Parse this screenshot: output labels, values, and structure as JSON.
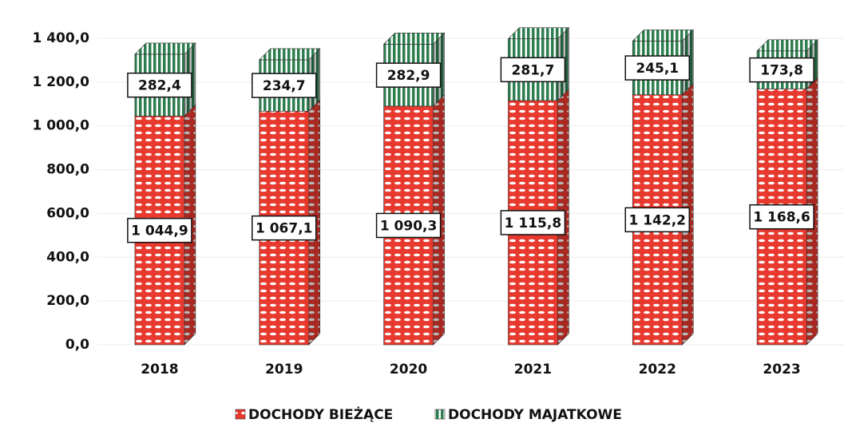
{
  "chart_data": {
    "type": "bar",
    "stacked": true,
    "categories": [
      "2018",
      "2019",
      "2020",
      "2021",
      "2022",
      "2023"
    ],
    "series": [
      {
        "name": "DOCHODY BIEŻĄCE",
        "color": "#e8392f",
        "values": [
          1044.9,
          1067.1,
          1090.3,
          1115.8,
          1142.2,
          1168.6
        ],
        "value_labels": [
          "1 044,9",
          "1 067,1",
          "1 090,3",
          "1 115,8",
          "1 142,2",
          "1 168,6"
        ]
      },
      {
        "name": "DOCHODY MAJATKOWE",
        "color": "#2e7d4f",
        "values": [
          282.4,
          234.7,
          282.9,
          281.7,
          245.1,
          173.8
        ],
        "value_labels": [
          "282,4",
          "234,7",
          "282,9",
          "281,7",
          "245,1",
          "173,8"
        ]
      }
    ],
    "ylim": [
      0,
      1400
    ],
    "yticks": [
      {
        "value": 0,
        "label": "0,0"
      },
      {
        "value": 200,
        "label": "200,0"
      },
      {
        "value": 400,
        "label": "400,0"
      },
      {
        "value": 600,
        "label": "600,0"
      },
      {
        "value": 800,
        "label": "800,0"
      },
      {
        "value": 1000,
        "label": "1 000,0"
      },
      {
        "value": 1200,
        "label": "1 200,0"
      },
      {
        "value": 1400,
        "label": "1 400,0"
      }
    ],
    "grid": true,
    "legend": "bottom"
  }
}
